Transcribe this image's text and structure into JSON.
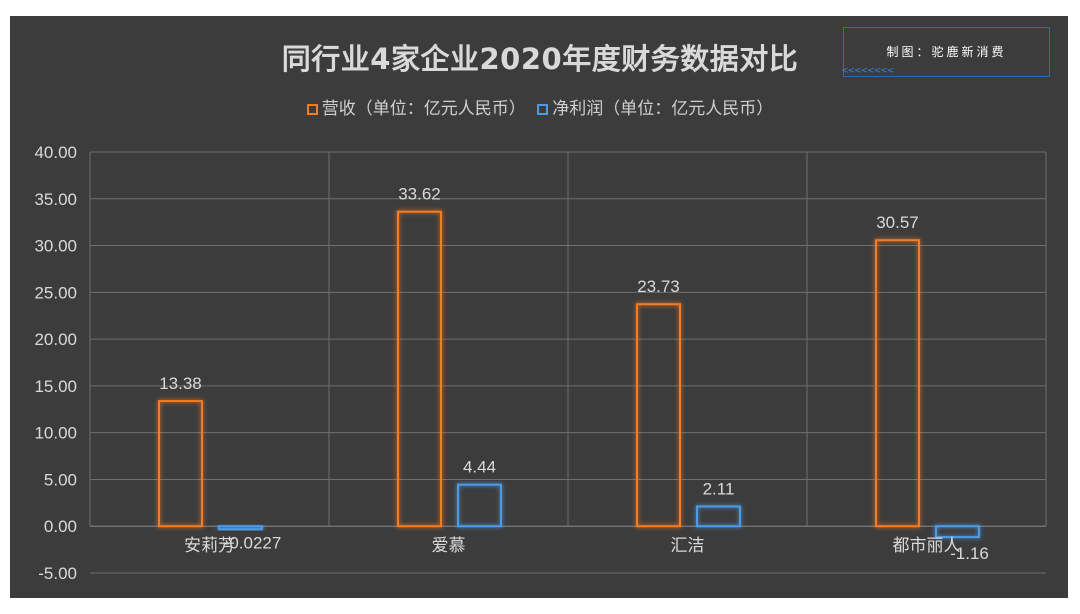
{
  "header": {
    "title": "同行业4家企业2020年度财务数据对比",
    "credit": "制图：驼鹿新消费",
    "credit_marks": "<<<<<<<<"
  },
  "colors": {
    "background": "#3c3c3c",
    "revenue": "#f47c20",
    "profit": "#4d9be6",
    "grid": "#6e6e6e",
    "text": "#d9d9d9"
  },
  "chart_data": {
    "type": "bar",
    "title": "同行业4家企业2020年度财务数据对比",
    "categories": [
      "安莉芳",
      "爱慕",
      "汇洁",
      "都市丽人"
    ],
    "series": [
      {
        "name": "营收（单位：亿元人民币）",
        "values": [
          13.38,
          33.62,
          23.73,
          30.57
        ],
        "labels": [
          "13.38",
          "33.62",
          "23.73",
          "30.57"
        ]
      },
      {
        "name": "净利润（单位：亿元人民币）",
        "values": [
          -0.0227,
          4.44,
          2.11,
          -1.16
        ],
        "labels": [
          "-0.0227",
          "4.44",
          "2.11",
          "-1.16"
        ]
      }
    ],
    "ylim": [
      -5,
      40
    ],
    "yticks": [
      "-5.00",
      "0.00",
      "5.00",
      "10.00",
      "15.00",
      "20.00",
      "25.00",
      "30.00",
      "35.00",
      "40.00"
    ],
    "grid": true,
    "legend": "top",
    "xlabel": "",
    "ylabel": ""
  }
}
